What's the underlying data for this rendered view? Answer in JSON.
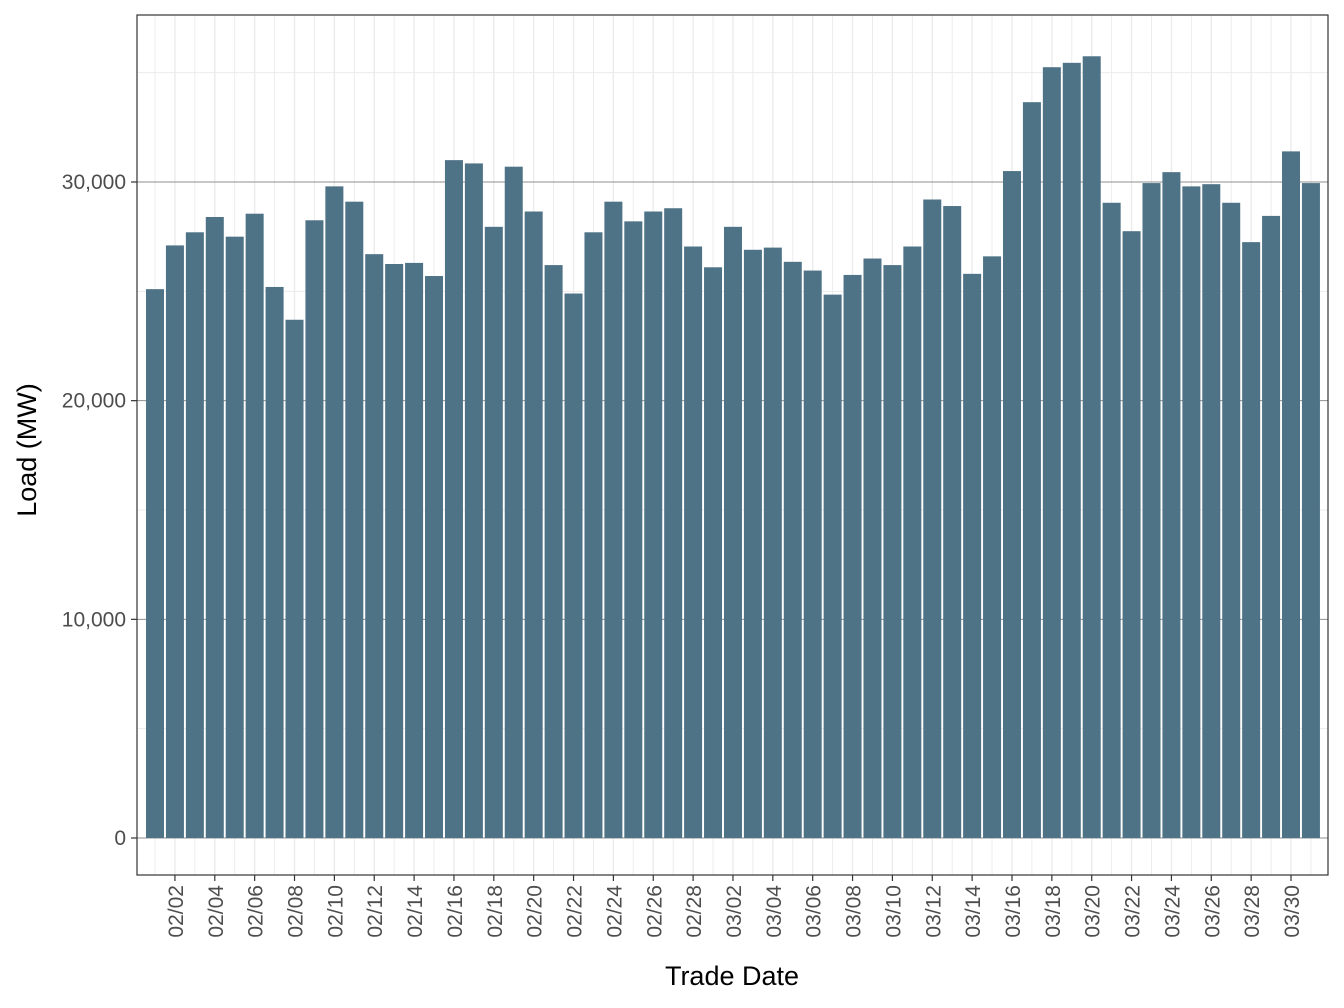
{
  "chart_data": {
    "type": "bar",
    "xlabel": "Trade Date",
    "ylabel": "Load (MW)",
    "ylim": [
      0,
      36000
    ],
    "yticks": [
      0,
      10000,
      20000,
      30000
    ],
    "ytick_labels": [
      "0",
      "10,000",
      "20,000",
      "30,000"
    ],
    "grid": true,
    "bar_color": "#4e7286",
    "x": [
      "02/01",
      "02/02",
      "02/03",
      "02/04",
      "02/05",
      "02/06",
      "02/07",
      "02/08",
      "02/09",
      "02/10",
      "02/11",
      "02/12",
      "02/13",
      "02/14",
      "02/15",
      "02/16",
      "02/17",
      "02/18",
      "02/19",
      "02/20",
      "02/21",
      "02/22",
      "02/23",
      "02/24",
      "02/25",
      "02/26",
      "02/27",
      "02/28",
      "03/01",
      "03/02",
      "03/03",
      "03/04",
      "03/05",
      "03/06",
      "03/07",
      "03/08",
      "03/09",
      "03/10",
      "03/11",
      "03/12",
      "03/13",
      "03/14",
      "03/15",
      "03/16",
      "03/17",
      "03/18",
      "03/19",
      "03/20",
      "03/21",
      "03/22",
      "03/23",
      "03/24",
      "03/25",
      "03/26",
      "03/27",
      "03/28",
      "03/29",
      "03/30",
      "03/31"
    ],
    "xtick_labels": [
      "02/02",
      "02/04",
      "02/06",
      "02/08",
      "02/10",
      "02/12",
      "02/14",
      "02/16",
      "02/18",
      "02/20",
      "02/22",
      "02/24",
      "02/26",
      "02/28",
      "03/02",
      "03/04",
      "03/06",
      "03/08",
      "03/10",
      "03/12",
      "03/14",
      "03/16",
      "03/18",
      "03/20",
      "03/22",
      "03/24",
      "03/26",
      "03/28",
      "03/30"
    ],
    "values": [
      25100,
      27100,
      27700,
      28400,
      27500,
      28550,
      25200,
      23700,
      28250,
      29800,
      29100,
      26700,
      26250,
      26300,
      25700,
      31000,
      30850,
      27950,
      30700,
      28650,
      26200,
      24900,
      27700,
      29100,
      28200,
      28650,
      28800,
      27050,
      26100,
      27950,
      26900,
      27000,
      26350,
      25950,
      24850,
      25750,
      26500,
      26200,
      27050,
      29200,
      28900,
      25800,
      26600,
      30500,
      33650,
      35250,
      35450,
      35750,
      29050,
      27750,
      29950,
      30450,
      29800,
      29900,
      29050,
      27250,
      28450,
      31400,
      29950
    ]
  }
}
